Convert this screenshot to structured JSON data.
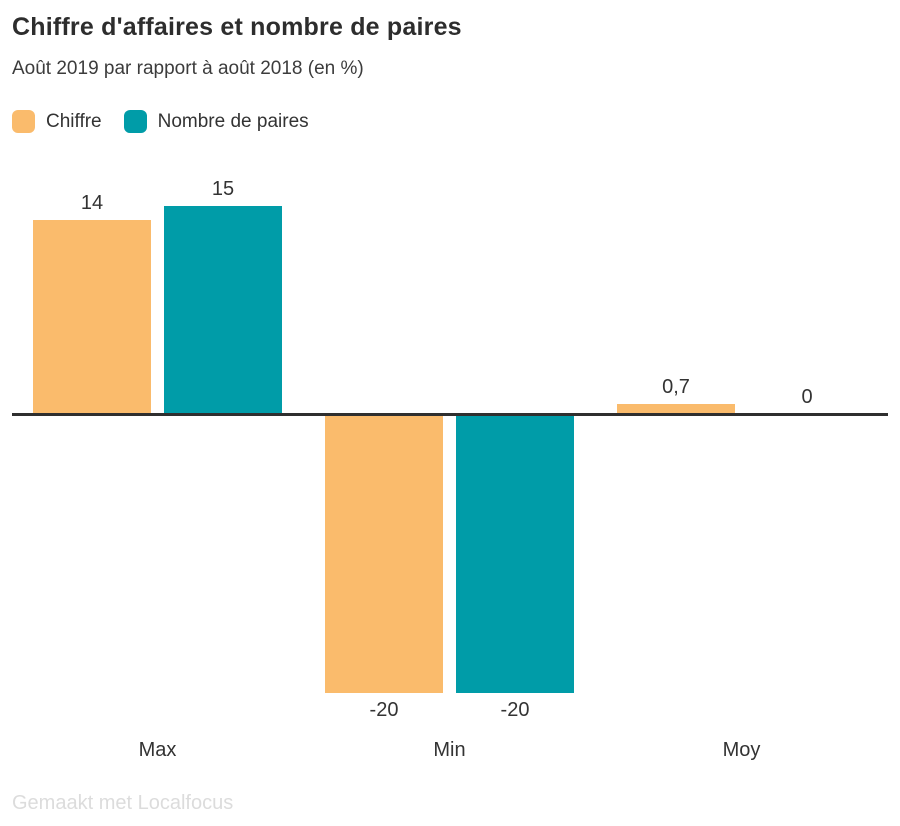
{
  "header": {
    "title": "Chiffre d'affaires et nombre de paires",
    "subtitle": "Août 2019 par rapport à août 2018 (en %)"
  },
  "footer": {
    "credit": "Gemaakt met Localfocus"
  },
  "colors": {
    "axis_line": "#2f2f2f",
    "text": "#333333",
    "credit_text": "#dcdcdc"
  },
  "chart_data": {
    "type": "bar",
    "title": "Chiffre d'affaires et nombre de paires",
    "subtitle": "Août 2019 par rapport à août 2018 (en %)",
    "categories": [
      "Max",
      "Min",
      "Moy"
    ],
    "series": [
      {
        "name": "Chiffre",
        "color": "#FABB6C",
        "values": [
          14,
          -20,
          0.7
        ],
        "value_labels": [
          "14",
          "-20",
          "0,7"
        ]
      },
      {
        "name": "Nombre de paires",
        "color": "#009CA8",
        "values": [
          15,
          -20,
          0
        ],
        "value_labels": [
          "15",
          "-20",
          "0"
        ]
      }
    ],
    "ylim": [
      -20,
      15
    ],
    "baseline": 0,
    "grid": false,
    "y_axis_shown": false,
    "value_labels_shown": true,
    "legend_position": "top-left"
  }
}
